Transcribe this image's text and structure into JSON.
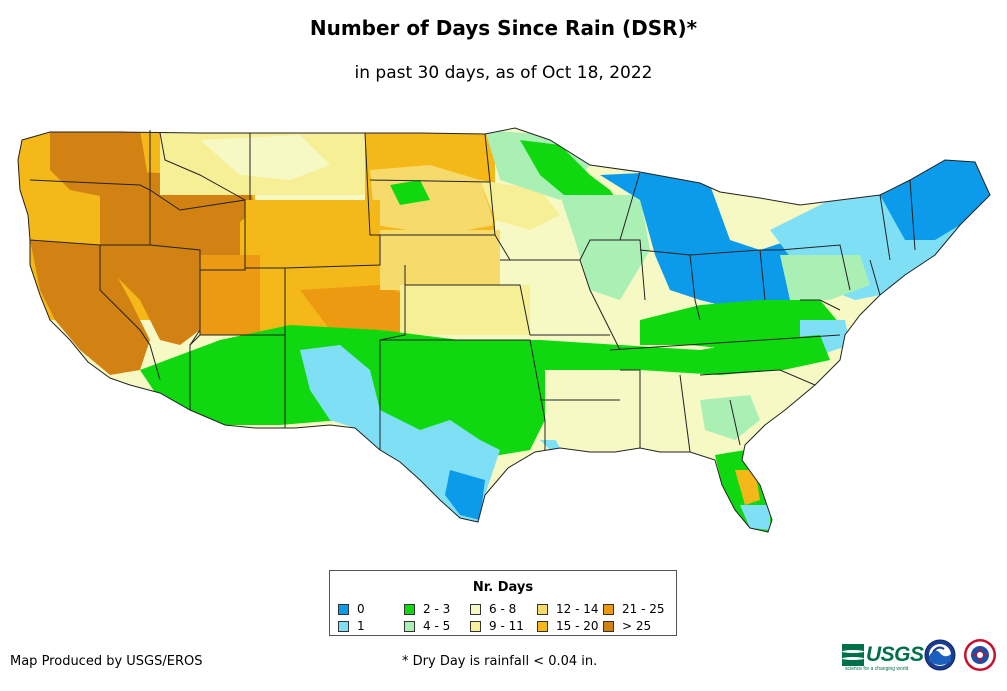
{
  "title": "Number of Days Since Rain (DSR)*",
  "subtitle": "in past 30 days, as of Oct 18, 2022",
  "legend": {
    "title": "Nr. Days",
    "items": [
      {
        "label": "0",
        "color": "#0c9bea"
      },
      {
        "label": "1",
        "color": "#7fe0f5"
      },
      {
        "label": "2 - 3",
        "color": "#10d810"
      },
      {
        "label": "4 - 5",
        "color": "#aaf0b4"
      },
      {
        "label": "6 - 8",
        "color": "#f7f9c4"
      },
      {
        "label": "9 - 11",
        "color": "#f7ef96"
      },
      {
        "label": "12 - 14",
        "color": "#f6db6c"
      },
      {
        "label": "15 - 20",
        "color": "#f4b918"
      },
      {
        "label": "21 - 25",
        "color": "#ec9a12"
      },
      {
        "label": "> 25",
        "color": "#d28212"
      }
    ]
  },
  "footer": {
    "producer": "Map Produced by USGS/EROS",
    "note": "* Dry Day is rainfall < 0.04 in."
  },
  "logos": {
    "usgs": "USGS",
    "usgs_tagline": "science for a changing world",
    "noaa": "noaa-logo",
    "nws": "nws-logo"
  }
}
